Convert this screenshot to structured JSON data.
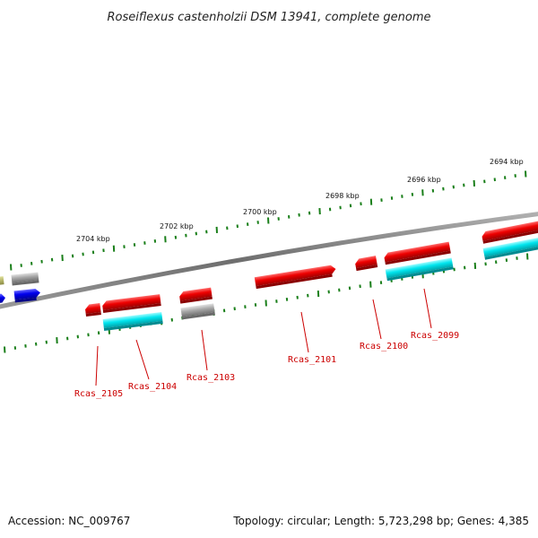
{
  "title": "Roseiflexus castenholzii DSM 13941, complete genome",
  "footer": {
    "accession": "Accession: NC_009767",
    "stats": "Topology: circular; Length: 5,723,298 bp; Genes: 4,385"
  },
  "colors": {
    "backbone": "#7a7a7a",
    "tick": "#1a7f1a",
    "label_line": "#cc0000",
    "gene_red": "#ee0000",
    "gene_cyan": "#00e5ee",
    "gene_gray": "#a8a8a8",
    "gene_blue": "#0000ee",
    "gene_olive": "#b5b56a"
  },
  "scale_labels": [
    {
      "kbp": 2694,
      "text": "2694 kbp"
    },
    {
      "kbp": 2696,
      "text": "2696 kbp"
    },
    {
      "kbp": 2698,
      "text": "2698 kbp"
    },
    {
      "kbp": 2700,
      "text": "2700 kbp"
    },
    {
      "kbp": 2702,
      "text": "2702 kbp"
    },
    {
      "kbp": 2704,
      "text": "2704 kbp"
    }
  ],
  "gene_labels": [
    {
      "id": "Rcas_2099",
      "text": "Rcas_2099"
    },
    {
      "id": "Rcas_2100",
      "text": "Rcas_2100"
    },
    {
      "id": "Rcas_2101",
      "text": "Rcas_2101"
    },
    {
      "id": "Rcas_2103",
      "text": "Rcas_2103"
    },
    {
      "id": "Rcas_2104",
      "text": "Rcas_2104"
    },
    {
      "id": "Rcas_2105",
      "text": "Rcas_2105"
    }
  ]
}
